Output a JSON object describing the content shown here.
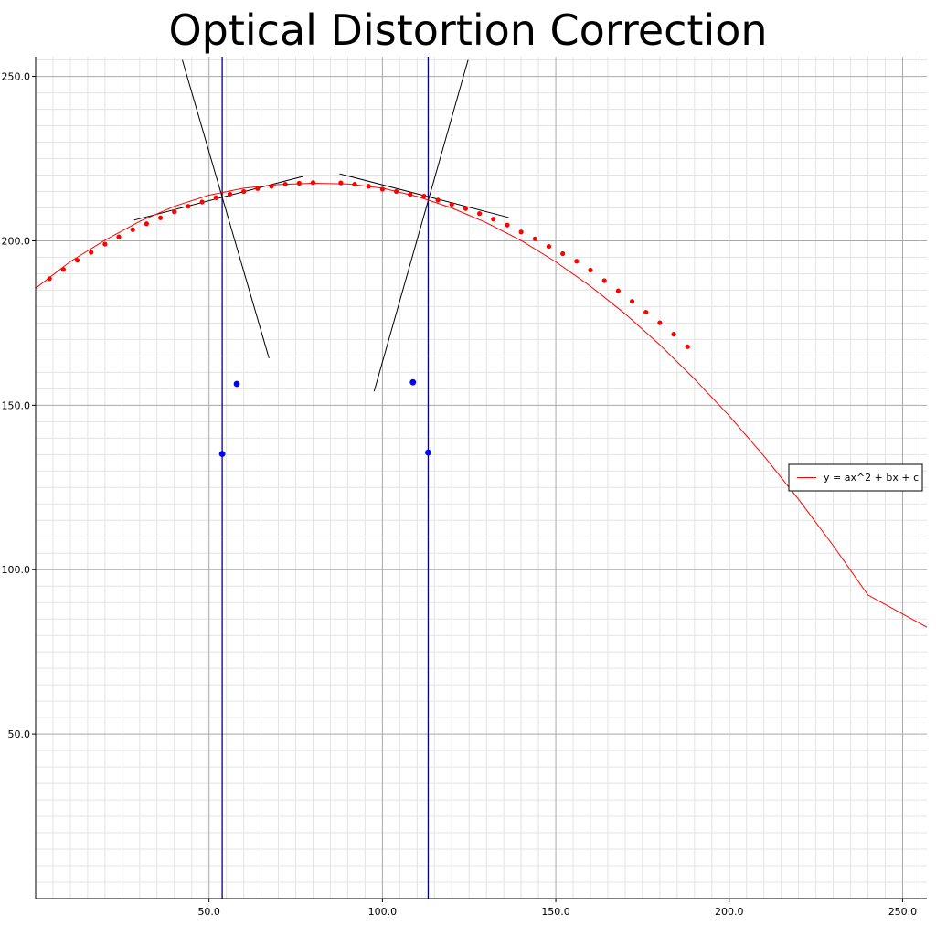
{
  "chart_data": {
    "type": "scatter",
    "title": "Optical Distortion Correction",
    "xlabel": "",
    "ylabel": "",
    "xlim": [
      0,
      257
    ],
    "ylim": [
      0,
      256
    ],
    "x_ticks": [
      50.0,
      100.0,
      150.0,
      200.0,
      250.0
    ],
    "y_ticks": [
      50.0,
      100.0,
      150.0,
      200.0,
      250.0
    ],
    "x_tick_labels": [
      "50.0",
      "100.0",
      "150.0",
      "200.0",
      "250.0"
    ],
    "y_tick_labels": [
      "50.0",
      "100.0",
      "150.0",
      "200.0",
      "250.0"
    ],
    "grid": true,
    "legend_position": "right",
    "fit_curve": {
      "name": "y = ax^2 + bx + c",
      "color": "#ff0000",
      "x": [
        0,
        10,
        20,
        30,
        40,
        50,
        60,
        70,
        80,
        90,
        100,
        110,
        120,
        130,
        140,
        150,
        160,
        170,
        180,
        190,
        200,
        210,
        220,
        230,
        240,
        257
      ],
      "y": [
        185.6,
        193.7,
        200.2,
        205.9,
        210.5,
        213.9,
        216.0,
        217.1,
        217.5,
        217.3,
        216.0,
        213.5,
        210.0,
        205.5,
        200.1,
        193.6,
        186.2,
        177.8,
        168.4,
        158.0,
        146.8,
        134.6,
        121.4,
        107.3,
        92.3,
        82.5
      ]
    },
    "series": [
      {
        "color": "#ff0000",
        "x": [
          4,
          8,
          12,
          16,
          20,
          24,
          28,
          32,
          36,
          40,
          44,
          48,
          52,
          56,
          60,
          64,
          68,
          72,
          76,
          80,
          88,
          92,
          96,
          100,
          104,
          108,
          112,
          116,
          120,
          124,
          128,
          132,
          136,
          140,
          144,
          148,
          152,
          156,
          160,
          164,
          168,
          172,
          176,
          180,
          184,
          188
        ],
        "y": [
          188.5,
          191.3,
          194.1,
          196.5,
          199.0,
          201.2,
          203.4,
          205.2,
          207.0,
          208.8,
          210.5,
          211.8,
          213.1,
          214.2,
          215.0,
          215.9,
          216.6,
          217.2,
          217.5,
          217.7,
          217.6,
          217.2,
          216.6,
          215.7,
          215.0,
          214.1,
          213.6,
          212.4,
          211.1,
          209.8,
          208.3,
          206.6,
          204.8,
          202.7,
          200.6,
          198.3,
          196.1,
          193.8,
          191.1,
          187.9,
          184.8,
          181.6,
          178.3,
          175.1,
          171.6,
          167.8
        ]
      },
      {
        "color": "#0000ff",
        "x": [
          53.8,
          58,
          113.2,
          108.8
        ],
        "y": [
          135.2,
          156.5,
          135.6,
          157.0
        ]
      }
    ],
    "vertical_lines": {
      "color": "#00008b",
      "x": [
        53.8,
        113.2
      ]
    },
    "tangent_lines": {
      "color": "#000000",
      "segments": [
        {
          "x": [
            42.3,
            67.3
          ],
          "y": [
            255.0,
            164.3
          ]
        },
        {
          "x": [
            28.4,
            77.1
          ],
          "y": [
            206.3,
            219.6
          ]
        },
        {
          "x": [
            87.6,
            136.4
          ],
          "y": [
            220.4,
            207.1
          ]
        },
        {
          "x": [
            124.7,
            97.6
          ],
          "y": [
            255.0,
            154.2
          ]
        }
      ]
    }
  },
  "legend": {
    "label": "y = ax^2 + bx + c"
  }
}
